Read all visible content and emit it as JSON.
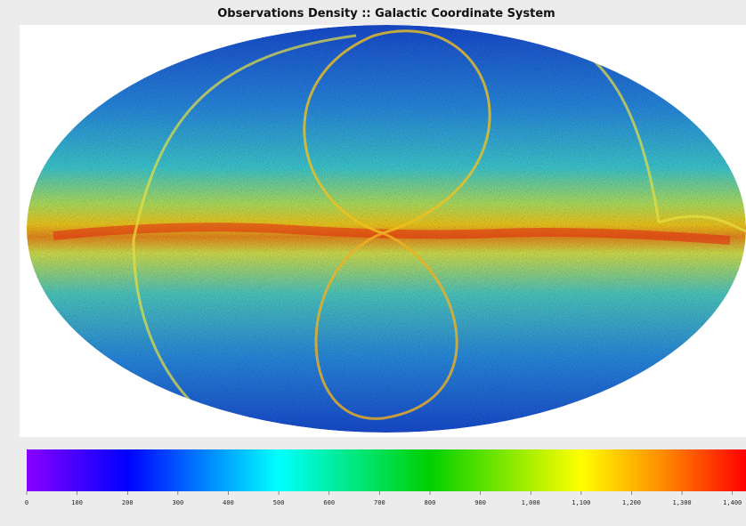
{
  "title": "Observations Density :: Galactic Coordinate System",
  "colorbar": {
    "lim": [
      0,
      1427
    ],
    "ticks": [
      0,
      100,
      200,
      300,
      400,
      500,
      600,
      700,
      800,
      900,
      {
        "value": 1000,
        "label": "1,000"
      },
      {
        "value": 1100,
        "label": "1,100"
      },
      {
        "value": 1200,
        "label": "1,200"
      },
      {
        "value": 1300,
        "label": "1,300"
      },
      {
        "value": 1400,
        "label": "1,400"
      }
    ]
  }
}
